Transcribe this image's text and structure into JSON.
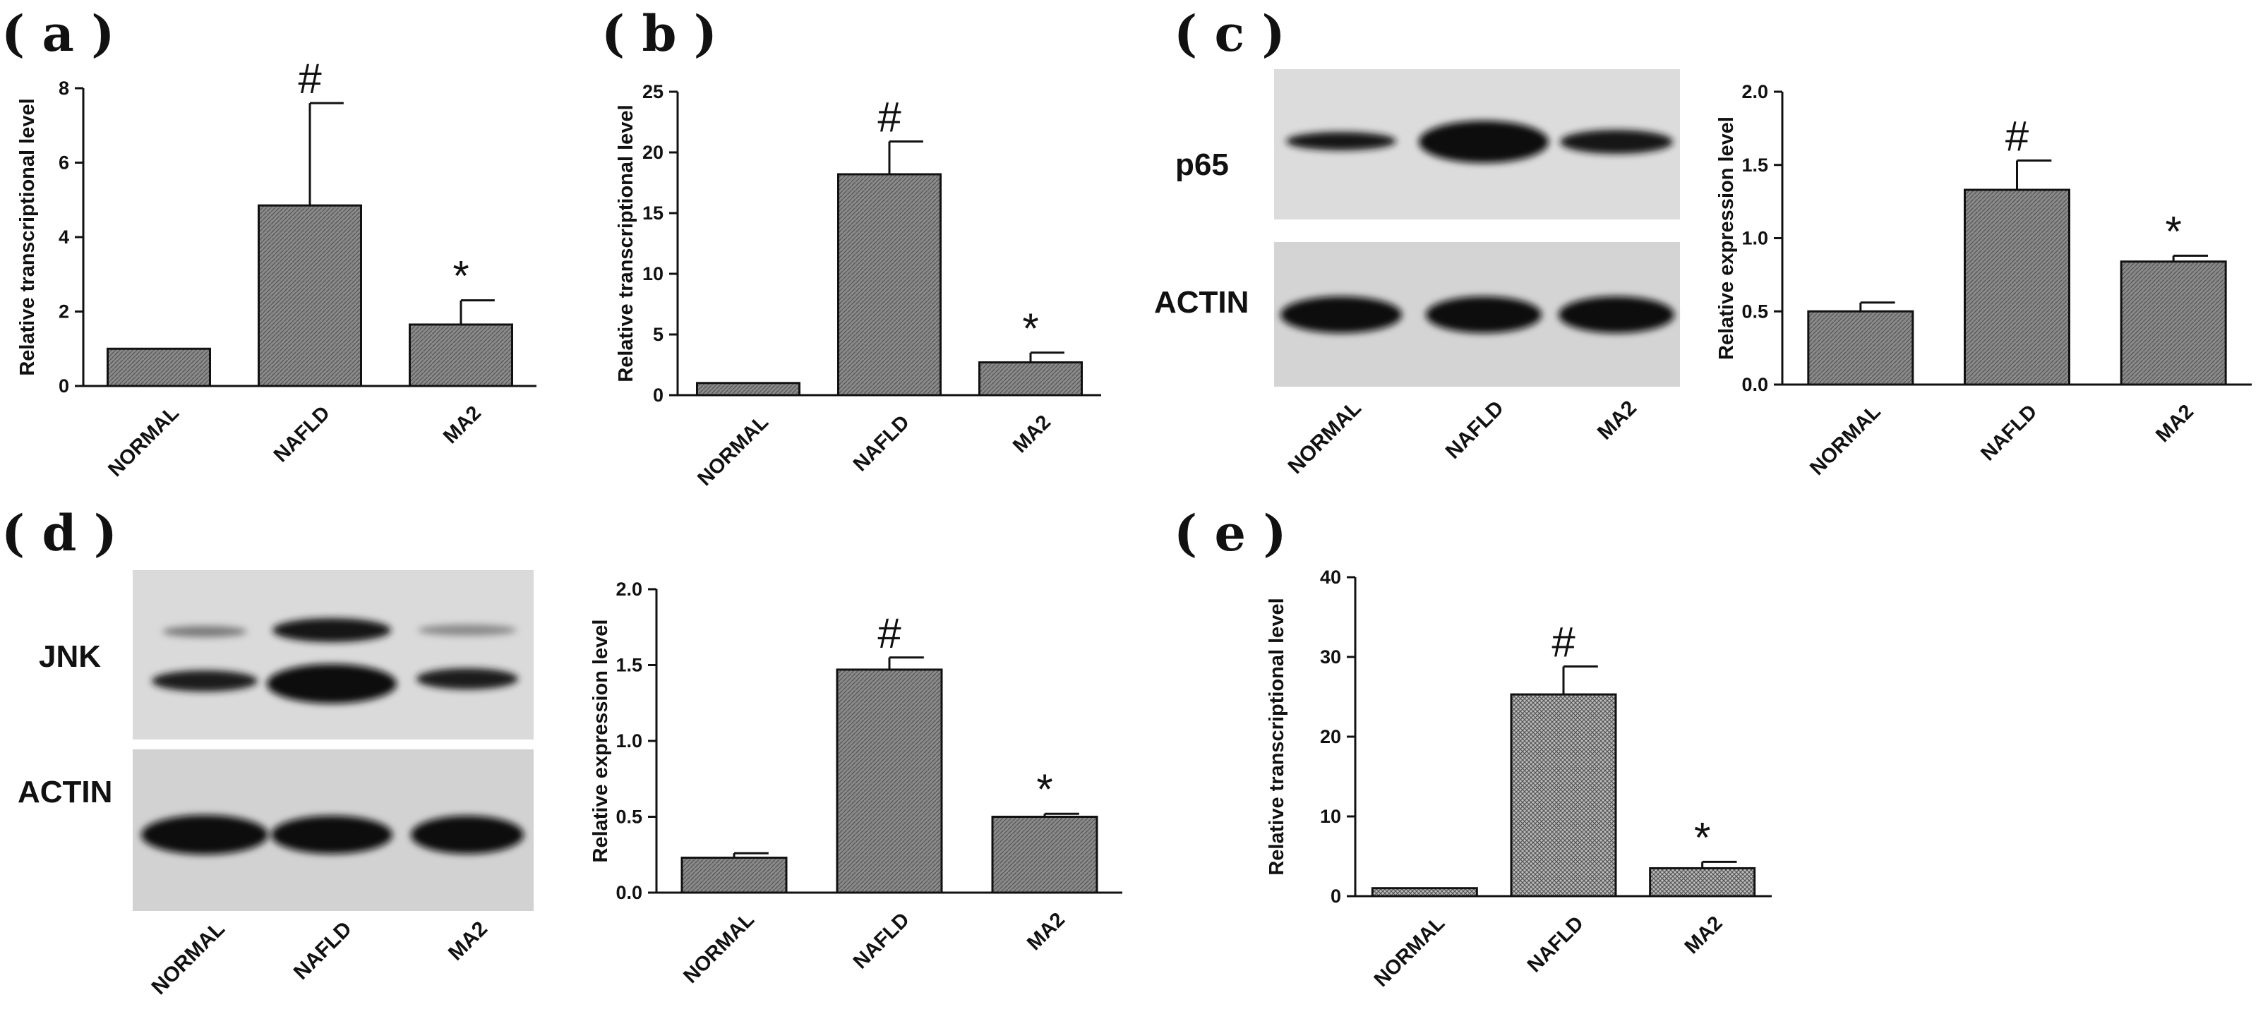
{
  "colors": {
    "bar_fill": "#7d7d7d",
    "bar_stroke": "#111111",
    "axis": "#111111",
    "blot_bg": "#d9d9d9",
    "band": "#151515"
  },
  "panels": {
    "a": {
      "label": "( a )"
    },
    "b": {
      "label": "( b )"
    },
    "c": {
      "label": "( c )",
      "blot_rows": [
        "p65",
        "ACTIN"
      ],
      "blot_lanes": [
        "NORMAL",
        "NAFLD",
        "MA2"
      ]
    },
    "d": {
      "label": "( d )",
      "blot_rows": [
        "JNK",
        "ACTIN"
      ],
      "blot_lanes": [
        "NORMAL",
        "NAFLD",
        "MA2"
      ]
    },
    "e": {
      "label": "( e )"
    }
  },
  "chart_data": [
    {
      "id": "a",
      "type": "bar",
      "categories": [
        "NORMAL",
        "NAFLD",
        "MA2"
      ],
      "values": [
        1.0,
        4.85,
        1.65
      ],
      "errors": [
        0,
        2.75,
        0.65
      ],
      "markers": [
        "",
        "#",
        "*"
      ],
      "ylabel": "Relative transcriptional level",
      "ylim": [
        0,
        8
      ],
      "yticks": [
        0,
        2,
        4,
        6,
        8
      ],
      "ytick_labels": [
        "0",
        "2",
        "4",
        "6",
        "8"
      ]
    },
    {
      "id": "b",
      "type": "bar",
      "categories": [
        "NORMAL",
        "NAFLD",
        "MA2"
      ],
      "values": [
        1.0,
        18.2,
        2.7
      ],
      "errors": [
        0,
        2.7,
        0.8
      ],
      "markers": [
        "",
        "#",
        "*"
      ],
      "ylabel": "Relative transcriptional level",
      "ylim": [
        0,
        25
      ],
      "yticks": [
        0,
        5,
        10,
        15,
        20,
        25
      ],
      "ytick_labels": [
        "0",
        "5",
        "10",
        "15",
        "20",
        "25"
      ]
    },
    {
      "id": "c",
      "type": "bar",
      "categories": [
        "NORMAL",
        "NAFLD",
        "MA2"
      ],
      "values": [
        0.5,
        1.33,
        0.84
      ],
      "errors": [
        0.06,
        0.2,
        0.04
      ],
      "markers": [
        "",
        "#",
        "*"
      ],
      "ylabel": "Relative expression level",
      "ylim": [
        0,
        2.0
      ],
      "yticks": [
        0,
        0.5,
        1.0,
        1.5,
        2.0
      ],
      "ytick_labels": [
        "0.0",
        "0.5",
        "1.0",
        "1.5",
        "2.0"
      ]
    },
    {
      "id": "d",
      "type": "bar",
      "categories": [
        "NORMAL",
        "NAFLD",
        "MA2"
      ],
      "values": [
        0.23,
        1.47,
        0.5
      ],
      "errors": [
        0.03,
        0.08,
        0.02
      ],
      "markers": [
        "",
        "#",
        "*"
      ],
      "ylabel": "Relative expression level",
      "ylim": [
        0,
        2.0
      ],
      "yticks": [
        0,
        0.5,
        1.0,
        1.5,
        2.0
      ],
      "ytick_labels": [
        "0.0",
        "0.5",
        "1.0",
        "1.5",
        "2.0"
      ]
    },
    {
      "id": "e",
      "type": "bar",
      "categories": [
        "NORMAL",
        "NAFLD",
        "MA2"
      ],
      "values": [
        1.0,
        25.3,
        3.5
      ],
      "errors": [
        0,
        3.5,
        0.8
      ],
      "markers": [
        "",
        "#",
        "*"
      ],
      "ylabel": "Relative transcriptional level",
      "ylim": [
        0,
        40
      ],
      "yticks": [
        0,
        10,
        20,
        30,
        40
      ],
      "ytick_labels": [
        "0",
        "10",
        "20",
        "30",
        "40"
      ]
    }
  ]
}
